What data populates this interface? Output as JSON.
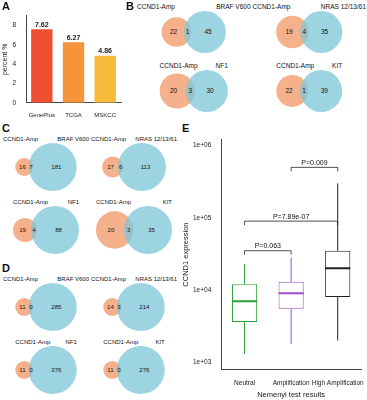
{
  "chart_data": [
    {
      "panel": "A",
      "type": "bar",
      "categories": [
        "GenePlus",
        "TCGA",
        "MSKCC"
      ],
      "values": [
        7.62,
        6.27,
        4.86
      ],
      "colors": [
        "#f04e30",
        "#f7943a",
        "#f6b93b"
      ],
      "ylabel": "percent %",
      "ylim": [
        0,
        9
      ],
      "yticks": [
        0,
        2,
        4,
        6,
        8
      ],
      "data_labels": true,
      "grid": false
    },
    {
      "panel": "E",
      "type": "box",
      "categories": [
        "Neutral",
        "Amplification",
        "High Amplification"
      ],
      "boxes": [
        {
          "whisker_low": 1300,
          "q1": 3600,
          "median": 7000,
          "q3": 12000,
          "whisker_high": 23000,
          "color": "#2e9b3c"
        },
        {
          "whisker_low": 1800,
          "q1": 5500,
          "median": 9000,
          "q3": 13000,
          "whisker_high": 28000,
          "color": "#9b4fc8"
        },
        {
          "whisker_low": 2000,
          "q1": 8000,
          "median": 20000,
          "q3": 35000,
          "whisker_high": 300000,
          "color": "#222222"
        }
      ],
      "xlabel": "Nemenyi test results",
      "ylabel": "CCND1 expression",
      "log": "y",
      "ylim": [
        800,
        1200000
      ],
      "yticks": [
        {
          "value": 1000,
          "label": "1e+03"
        },
        {
          "value": 10000,
          "label": "1e+04"
        },
        {
          "value": 100000,
          "label": "1e+05"
        },
        {
          "value": 1000000,
          "label": "1e+06"
        }
      ],
      "grid": false,
      "annotations": [
        {
          "text": "P=0.063",
          "from": "Neutral",
          "to": "Amplification",
          "y": 35000
        },
        {
          "text": "P=7.89e-07",
          "from": "Neutral",
          "to": "High Amplification",
          "y": 90000
        },
        {
          "text": "P=0.009",
          "from": "Amplification",
          "to": "High Amplification",
          "y": 500000
        }
      ]
    }
  ],
  "venn_colors": [
    "#f4a97e",
    "#7cc6d8"
  ],
  "venn_panels": [
    {
      "panel": "B",
      "diagrams": [
        {
          "left_label": "CCND1-Amp",
          "right_label": "BRAF V600",
          "left_only": 22,
          "both": 1,
          "right_only": 45
        },
        {
          "left_label": "CCND1-Amp",
          "right_label": "NRAS 12/13/61",
          "left_only": 19,
          "both": 4,
          "right_only": 35
        },
        {
          "left_label": "CCND1-Amp",
          "right_label": "NF1",
          "left_only": 20,
          "both": 3,
          "right_only": 30
        },
        {
          "left_label": "CCND1-Amp",
          "right_label": "KIT",
          "left_only": 22,
          "both": 1,
          "right_only": 39
        }
      ]
    },
    {
      "panel": "C",
      "diagrams": [
        {
          "left_label": "CCND1-Amp",
          "right_label": "BRAF V600",
          "left_only": 16,
          "both": 7,
          "right_only": 181
        },
        {
          "left_label": "CCND1-Amp",
          "right_label": "NRAS 12/13/61",
          "left_only": 17,
          "both": 6,
          "right_only": 113
        },
        {
          "left_label": "CCND1-Amp",
          "right_label": "NF1",
          "left_only": 19,
          "both": 4,
          "right_only": 88
        },
        {
          "left_label": "CCND1-Amp",
          "right_label": "KIT",
          "left_only": 20,
          "both": 3,
          "right_only": 35
        }
      ]
    },
    {
      "panel": "D",
      "diagrams": [
        {
          "left_label": "CCND1-Amp",
          "right_label": "BRAF V600",
          "left_only": 11,
          "both": 0,
          "right_only": 285
        },
        {
          "left_label": "CCND1-Amp",
          "right_label": "NRAS 12/13/61",
          "left_only": 14,
          "both": 3,
          "right_only": 214
        },
        {
          "left_label": "CCND1-Amp",
          "right_label": "NF1",
          "left_only": 11,
          "both": 0,
          "right_only": 376
        },
        {
          "left_label": "CCND1-Amp",
          "right_label": "KIT",
          "left_only": 11,
          "both": 0,
          "right_only": 276
        }
      ]
    }
  ]
}
